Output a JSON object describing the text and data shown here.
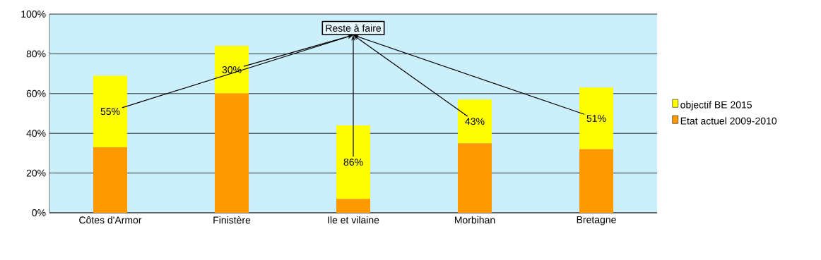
{
  "chart_data": {
    "type": "bar",
    "stacked": true,
    "categories": [
      "Côtes d'Armor",
      "Finistère",
      "Ile et vilaine",
      "Morbihan",
      "Bretagne"
    ],
    "series": [
      {
        "name": "Etat actuel 2009-2010",
        "color": "#ff9900",
        "values": [
          33,
          60,
          7,
          35,
          32
        ]
      },
      {
        "name": "objectif BE 2015",
        "color": "#ffff00",
        "values": [
          36,
          24,
          37,
          22,
          31
        ]
      }
    ],
    "ylim": [
      0,
      100
    ],
    "yticks": [
      {
        "value": 0,
        "label": "0%"
      },
      {
        "value": 20,
        "label": "20%"
      },
      {
        "value": 40,
        "label": "40%"
      },
      {
        "value": 60,
        "label": "60%"
      },
      {
        "value": 80,
        "label": "80%"
      },
      {
        "value": 100,
        "label": "100%"
      }
    ],
    "grid": "y",
    "legend": "right",
    "annotations": [
      "Reste à faire",
      "55%",
      "30%",
      "86%",
      "43%",
      "51%"
    ]
  }
}
